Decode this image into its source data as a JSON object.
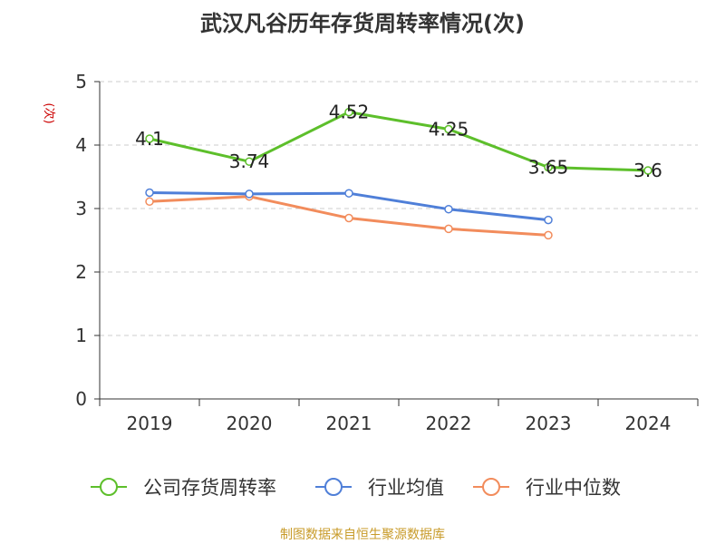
{
  "chart_data": {
    "type": "line",
    "title": "武汉凡谷历年存货周转率情况(次)",
    "ylabel": "(次)",
    "xlabel": "",
    "categories": [
      "2019",
      "2020",
      "2021",
      "2022",
      "2023",
      "2024"
    ],
    "ylim": [
      0,
      5
    ],
    "yticks": [
      0,
      1,
      2,
      3,
      4,
      5
    ],
    "grid": true,
    "legend_position": "bottom",
    "series": [
      {
        "name": "公司存货周转率",
        "color": "#5dbf2b",
        "values": [
          4.1,
          3.74,
          4.52,
          4.25,
          3.65,
          3.6
        ],
        "labels": [
          "4.1",
          "3.74",
          "4.52",
          "4.25",
          "3.65",
          "3.6"
        ]
      },
      {
        "name": "行业均值",
        "color": "#4f7fd8",
        "values": [
          3.25,
          3.23,
          3.24,
          2.99,
          2.82,
          null
        ]
      },
      {
        "name": "行业中位数",
        "color": "#f28c5c",
        "values": [
          3.11,
          3.19,
          2.85,
          2.68,
          2.58,
          null
        ]
      }
    ]
  },
  "source": "制图数据来自恒生聚源数据库",
  "colors": {
    "axis": "#333333",
    "grid": "#cccccc",
    "ylabel": "#cc0000",
    "source": "#c89b2a"
  }
}
